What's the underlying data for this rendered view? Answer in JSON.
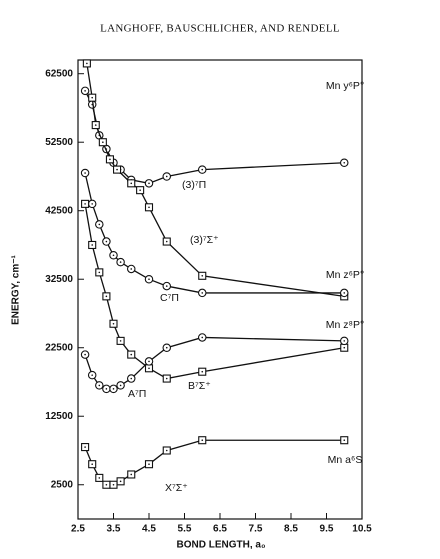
{
  "chart_data": {
    "type": "line",
    "title": "LANGHOFF, BAUSCHLICHER, AND RENDELL",
    "x_label": "BOND LENGTH, a₀",
    "y_label": "ENERGY, cm⁻¹",
    "xlim": [
      2.5,
      10.5
    ],
    "ylim": [
      -2500,
      64500
    ],
    "xticks": [
      2.5,
      3.5,
      4.5,
      5.5,
      6.5,
      7.5,
      8.5,
      9.5,
      10.5
    ],
    "yticks": [
      2500,
      12500,
      22500,
      32500,
      42500,
      52500,
      62500
    ],
    "series": [
      {
        "name": "(3)⁷Π",
        "marker": "circle",
        "color": "#111",
        "x": [
          2.7,
          2.9,
          3.1,
          3.3,
          3.5,
          3.7,
          4.0,
          4.5,
          5.0,
          6.0,
          10.0
        ],
        "values": [
          60000,
          58000,
          53500,
          51500,
          49500,
          48500,
          47000,
          46500,
          47500,
          48500,
          49500
        ]
      },
      {
        "name": "(3)⁷Σ⁺",
        "marker": "square",
        "color": "#111",
        "x": [
          2.75,
          2.9,
          3.0,
          3.2,
          3.4,
          3.6,
          4.0,
          4.25,
          4.5,
          5.0,
          6.0,
          10.0
        ],
        "values": [
          64000,
          59000,
          55000,
          52500,
          50000,
          48500,
          46500,
          45500,
          43000,
          38000,
          33000,
          30000
        ]
      },
      {
        "name": "C⁷Π",
        "marker": "circle",
        "color": "#111",
        "x": [
          2.7,
          2.9,
          3.1,
          3.3,
          3.5,
          3.7,
          4.0,
          4.5,
          5.0,
          6.0,
          10.0
        ],
        "values": [
          48000,
          43500,
          40500,
          38000,
          36000,
          35000,
          34000,
          32500,
          31500,
          30500,
          30500
        ]
      },
      {
        "name": "B⁷Σ⁺",
        "marker": "square",
        "color": "#111",
        "x": [
          2.7,
          2.9,
          3.1,
          3.3,
          3.5,
          3.7,
          4.0,
          4.5,
          5.0,
          6.0,
          10.0
        ],
        "values": [
          43500,
          37500,
          33500,
          30000,
          26000,
          23500,
          21500,
          19500,
          18000,
          19000,
          22500
        ]
      },
      {
        "name": "A⁷Π",
        "marker": "circle",
        "color": "#111",
        "x": [
          2.7,
          2.9,
          3.1,
          3.3,
          3.5,
          3.7,
          4.0,
          4.5,
          5.0,
          6.0,
          10.0
        ],
        "values": [
          21500,
          18500,
          17000,
          16500,
          16500,
          17000,
          18000,
          20500,
          22500,
          24000,
          23500
        ]
      },
      {
        "name": "X⁷Σ⁺",
        "marker": "square",
        "color": "#111",
        "x": [
          2.7,
          2.9,
          3.1,
          3.3,
          3.5,
          3.7,
          4.0,
          4.5,
          5.0,
          6.0,
          10.0
        ],
        "values": [
          8000,
          5500,
          3500,
          2500,
          2500,
          3000,
          4000,
          5500,
          7500,
          9000,
          9000
        ]
      }
    ],
    "annotations": [
      "Mn y⁶P°",
      "Mn z⁶P°",
      "Mn z⁸P°",
      "Mn a⁶S"
    ]
  }
}
